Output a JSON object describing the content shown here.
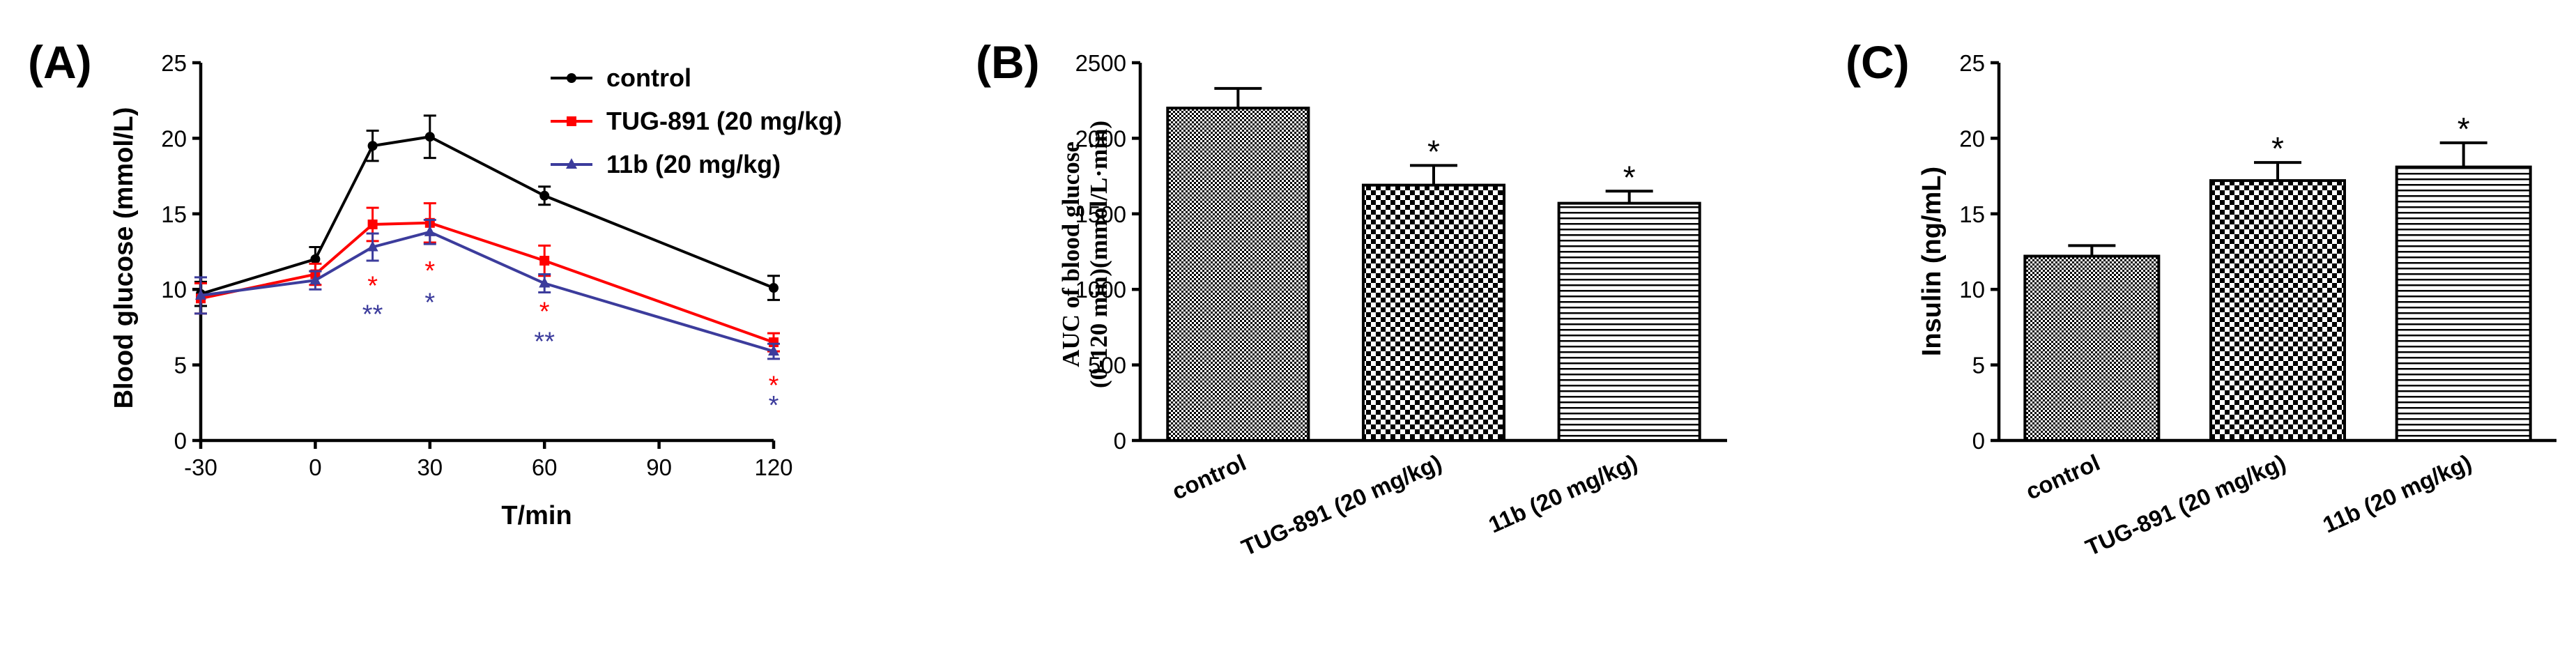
{
  "chart_data": [
    {
      "panel": "(A)",
      "type": "line",
      "xlabel": "T/min",
      "ylabel": "Blood glucose (mmol/L)",
      "xlim": [
        -30,
        120
      ],
      "ylim": [
        0,
        25
      ],
      "xticks": [
        -30,
        0,
        30,
        60,
        90,
        120
      ],
      "yticks": [
        0,
        5,
        10,
        15,
        20,
        25
      ],
      "x": [
        -30,
        0,
        15,
        30,
        60,
        120
      ],
      "legend_position": "top-right",
      "series": [
        {
          "name": "control",
          "color": "#000000",
          "marker": "circle",
          "values": [
            9.7,
            12.0,
            19.5,
            20.1,
            16.2,
            10.1
          ],
          "error": [
            0.8,
            0.8,
            1.0,
            1.4,
            0.6,
            0.8
          ]
        },
        {
          "name": "TUG-891 (20 mg/kg)",
          "color": "#ff0000",
          "marker": "square",
          "values": [
            9.4,
            11.0,
            14.3,
            14.4,
            11.9,
            6.5
          ],
          "error": [
            1.0,
            0.7,
            1.1,
            1.3,
            1.0,
            0.6
          ]
        },
        {
          "name": "11b (20 mg/kg)",
          "color": "#3c3c9c",
          "marker": "triangle",
          "values": [
            9.6,
            10.6,
            12.8,
            13.8,
            10.4,
            5.9
          ],
          "error": [
            1.2,
            0.6,
            0.9,
            0.8,
            0.6,
            0.5
          ]
        }
      ],
      "annotations": [
        {
          "x": 15,
          "text": "*",
          "color": "#ff0000",
          "level": 10.4
        },
        {
          "x": 15,
          "text": "**",
          "color": "#3c3c9c",
          "level": 8.5
        },
        {
          "x": 30,
          "text": "*",
          "color": "#ff0000",
          "level": 11.4
        },
        {
          "x": 30,
          "text": "*",
          "color": "#3c3c9c",
          "level": 9.3
        },
        {
          "x": 60,
          "text": "*",
          "color": "#ff0000",
          "level": 8.7
        },
        {
          "x": 60,
          "text": "**",
          "color": "#3c3c9c",
          "level": 6.7
        },
        {
          "x": 120,
          "text": "*",
          "color": "#ff0000",
          "level": 3.8
        },
        {
          "x": 120,
          "text": "*",
          "color": "#3c3c9c",
          "level": 2.5
        }
      ]
    },
    {
      "panel": "(B)",
      "type": "bar",
      "ylabel_line1": "AUC of blood glucose",
      "ylabel_line2": "(0-120 min)(mmol/L·min)",
      "ylim": [
        0,
        2500
      ],
      "yticks": [
        0,
        500,
        1000,
        1500,
        2000,
        2500
      ],
      "categories": [
        "control",
        "TUG-891 (20 mg/kg)",
        "11b (20 mg/kg)"
      ],
      "values": [
        2200,
        1690,
        1570
      ],
      "error": [
        130,
        130,
        80
      ],
      "significance": [
        "",
        "*",
        "*"
      ],
      "patterns": [
        "dense-checker",
        "checker",
        "horizontal-lines"
      ]
    },
    {
      "panel": "(C)",
      "type": "bar",
      "ylabel": "Insulin (ng/mL)",
      "ylim": [
        0,
        25
      ],
      "yticks": [
        0,
        5,
        10,
        15,
        20,
        25
      ],
      "categories": [
        "control",
        "TUG-891 (20 mg/kg)",
        "11b (20 mg/kg)"
      ],
      "values": [
        12.2,
        17.2,
        18.1
      ],
      "error": [
        0.7,
        1.2,
        1.6
      ],
      "significance": [
        "",
        "*",
        "*"
      ],
      "patterns": [
        "dense-checker",
        "checker",
        "horizontal-lines"
      ]
    }
  ]
}
